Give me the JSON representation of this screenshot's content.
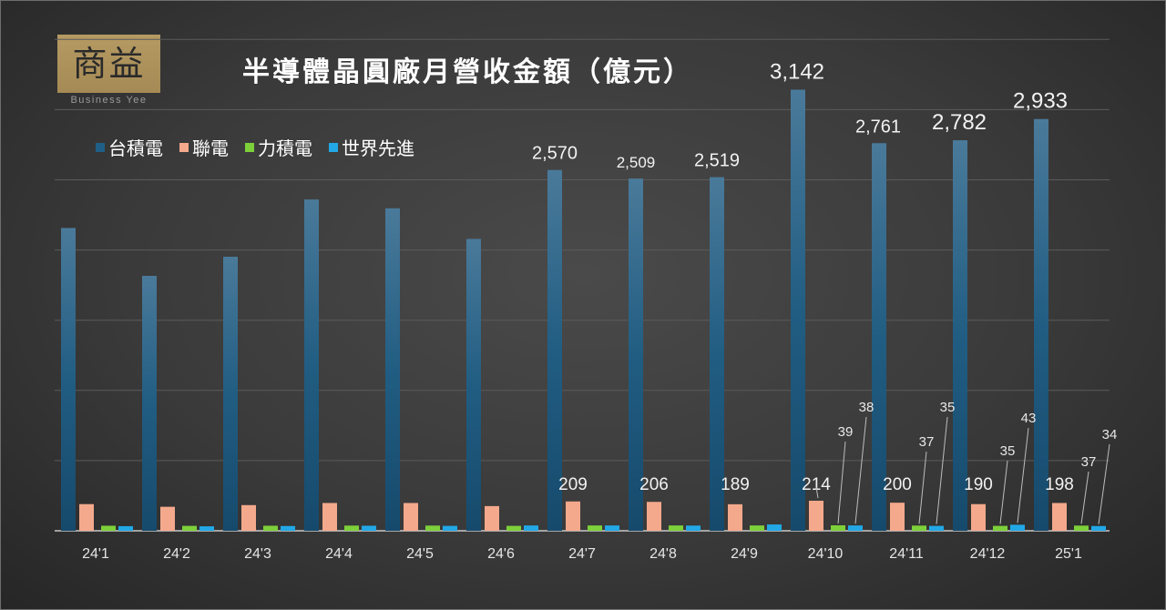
{
  "header": {
    "logo_text": "商益",
    "logo_subtitle": "Business Yee"
  },
  "chart_data": {
    "type": "bar",
    "title": "半導體晶圓廠月營收金額（億元）",
    "xlabel": "",
    "ylabel": "",
    "ylim": [
      0,
      3500
    ],
    "grid": true,
    "legend_position": "top-left",
    "categories": [
      "24'1",
      "24'2",
      "24'3",
      "24'4",
      "24'5",
      "24'6",
      "24'7",
      "24'8",
      "24'9",
      "24'10",
      "24'11",
      "24'12",
      "25'1"
    ],
    "series": [
      {
        "name": "台積電",
        "color": "#1f5f85",
        "values": [
          2157,
          1816,
          1952,
          2360,
          2297,
          2079,
          2570,
          2509,
          2519,
          3142,
          2761,
          2782,
          2933
        ],
        "labels": [
          "",
          "",
          "",
          "",
          "",
          "",
          "2,570",
          "2,509",
          "2,519",
          "3,142",
          "2,761",
          "2,782",
          "2,933"
        ]
      },
      {
        "name": "聯電",
        "color": "#f4a98c",
        "values": [
          190,
          171,
          183,
          198,
          198,
          176,
          209,
          206,
          189,
          214,
          200,
          190,
          198
        ],
        "labels": [
          "",
          "",
          "",
          "",
          "",
          "",
          "209",
          "206",
          "189",
          "214",
          "200",
          "190",
          "198"
        ]
      },
      {
        "name": "力積電",
        "color": "#7ed03a",
        "values": [
          36,
          35,
          36,
          37,
          37,
          35,
          38,
          38,
          38,
          39,
          37,
          35,
          37
        ],
        "labels": [
          "",
          "",
          "",
          "",
          "",
          "",
          "",
          "",
          "",
          "39",
          "37",
          "35",
          "37"
        ]
      },
      {
        "name": "世界先進",
        "color": "#22a8e6",
        "values": [
          33,
          32,
          34,
          36,
          35,
          38,
          38,
          37,
          45,
          38,
          35,
          43,
          34
        ],
        "labels": [
          "",
          "",
          "",
          "",
          "",
          "",
          "",
          "",
          "",
          "38",
          "35",
          "43",
          "34"
        ]
      }
    ]
  }
}
